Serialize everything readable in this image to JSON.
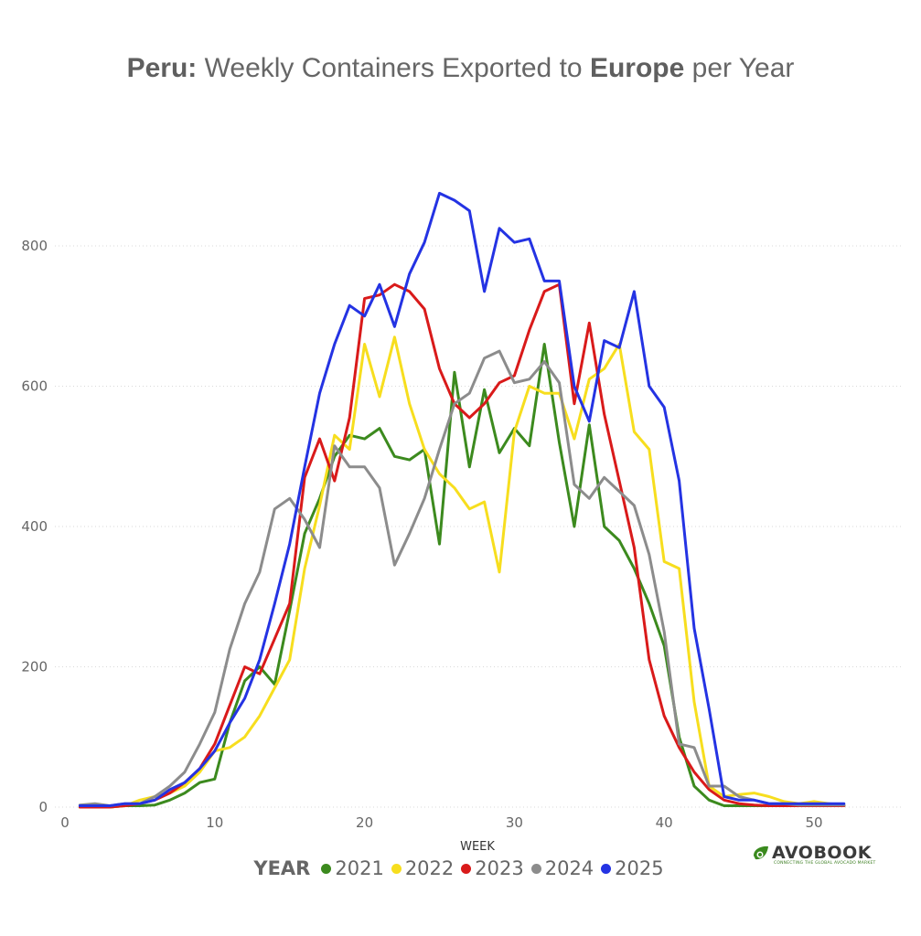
{
  "title": {
    "part1": "Peru:",
    "part2": " Weekly Containers Exported to ",
    "part3": "Europe",
    "part4": " per Year"
  },
  "legend": {
    "title": "YEAR"
  },
  "logo": {
    "brand": "AVOBOOK",
    "tagline": "CONNECTING THE GLOBAL AVOCADO MARKET"
  },
  "chart_data": {
    "type": "line",
    "xlabel": "WEEK",
    "ylabel": "",
    "xlim": [
      0,
      55
    ],
    "ylim": [
      0,
      900
    ],
    "xticks": [
      0,
      10,
      20,
      30,
      40,
      50
    ],
    "yticks": [
      0,
      200,
      400,
      600,
      800
    ],
    "grid": "horizontal dotted",
    "legend_position": "bottom-center",
    "x": [
      1,
      2,
      3,
      4,
      5,
      6,
      7,
      8,
      9,
      10,
      11,
      12,
      13,
      14,
      15,
      16,
      17,
      18,
      19,
      20,
      21,
      22,
      23,
      24,
      25,
      26,
      27,
      28,
      29,
      30,
      31,
      32,
      33,
      34,
      35,
      36,
      37,
      38,
      39,
      40,
      41,
      42,
      43,
      44,
      45,
      46,
      47,
      48,
      49,
      50,
      51,
      52
    ],
    "series": [
      {
        "name": "2021",
        "color": "#3c8a1e",
        "values": [
          0,
          0,
          0,
          2,
          2,
          3,
          10,
          20,
          35,
          40,
          120,
          180,
          200,
          175,
          280,
          390,
          440,
          500,
          530,
          525,
          540,
          500,
          495,
          510,
          375,
          620,
          485,
          595,
          505,
          540,
          515,
          660,
          520,
          400,
          545,
          400,
          380,
          340,
          290,
          230,
          100,
          30,
          10,
          2,
          2,
          2,
          2,
          2,
          2,
          2,
          2,
          2
        ]
      },
      {
        "name": "2022",
        "color": "#f7de1e",
        "values": [
          0,
          0,
          0,
          2,
          10,
          15,
          20,
          30,
          50,
          80,
          85,
          100,
          130,
          170,
          210,
          340,
          430,
          530,
          510,
          660,
          585,
          670,
          575,
          510,
          475,
          455,
          425,
          435,
          335,
          535,
          600,
          590,
          590,
          525,
          610,
          625,
          660,
          535,
          510,
          350,
          340,
          150,
          30,
          15,
          18,
          20,
          15,
          8,
          5,
          8,
          5,
          3
        ]
      },
      {
        "name": "2023",
        "color": "#d91a1a",
        "values": [
          0,
          0,
          0,
          2,
          5,
          10,
          20,
          35,
          55,
          90,
          145,
          200,
          190,
          240,
          290,
          470,
          525,
          465,
          555,
          725,
          730,
          745,
          735,
          710,
          625,
          575,
          555,
          575,
          605,
          615,
          680,
          735,
          745,
          575,
          690,
          560,
          465,
          370,
          210,
          130,
          85,
          50,
          25,
          10,
          5,
          3,
          2,
          2,
          2,
          2,
          2,
          2
        ]
      },
      {
        "name": "2024",
        "color": "#8c8c8c",
        "values": [
          3,
          5,
          2,
          5,
          5,
          15,
          30,
          50,
          90,
          135,
          225,
          290,
          335,
          425,
          440,
          410,
          370,
          515,
          485,
          485,
          455,
          345,
          390,
          440,
          510,
          575,
          590,
          640,
          650,
          605,
          610,
          635,
          605,
          460,
          440,
          470,
          450,
          430,
          360,
          250,
          90,
          85,
          30,
          30,
          15,
          10,
          5,
          5,
          3,
          3,
          3,
          3
        ]
      },
      {
        "name": "2025",
        "color": "#2433e3",
        "values": [
          2,
          2,
          2,
          5,
          5,
          10,
          25,
          35,
          55,
          80,
          120,
          155,
          210,
          290,
          375,
          485,
          590,
          660,
          715,
          700,
          745,
          685,
          760,
          805,
          875,
          865,
          850,
          735,
          825,
          805,
          810,
          750,
          750,
          600,
          550,
          665,
          655,
          735,
          600,
          570,
          465,
          255,
          140,
          15,
          10,
          10,
          5,
          5,
          5,
          5,
          5,
          5
        ]
      }
    ]
  }
}
